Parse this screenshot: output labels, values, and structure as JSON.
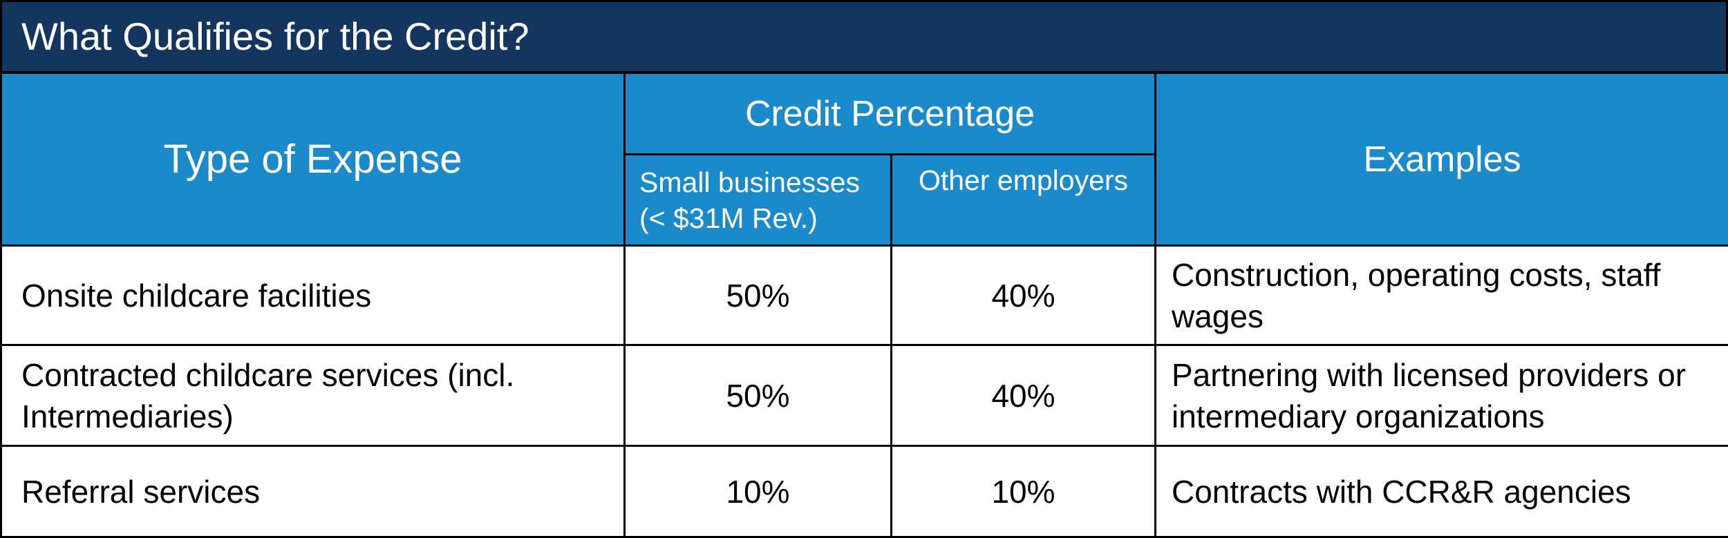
{
  "title": "What Qualifies for the Credit?",
  "headers": {
    "type_of_expense": "Type of Expense",
    "credit_percentage": "Credit Percentage",
    "small_businesses": "Small businesses\n(< $31M Rev.)",
    "other_employers": "Other employers",
    "examples": "Examples"
  },
  "rows": [
    {
      "type": "Onsite childcare facilities",
      "small": "50%",
      "other": "40%",
      "example": "Construction, operating costs, staff wages"
    },
    {
      "type": "Contracted childcare services (incl. Intermediaries)",
      "small": "50%",
      "other": "40%",
      "example": "Partnering with licensed providers or intermediary organizations"
    },
    {
      "type": "Referral services",
      "small": "10%",
      "other": "10%",
      "example": "Contracts with CCR&R agencies"
    }
  ],
  "colors": {
    "title_bg": "#13355e",
    "header_bg": "#1b8acb",
    "header_text": "#ffffff",
    "border": "#000000"
  }
}
